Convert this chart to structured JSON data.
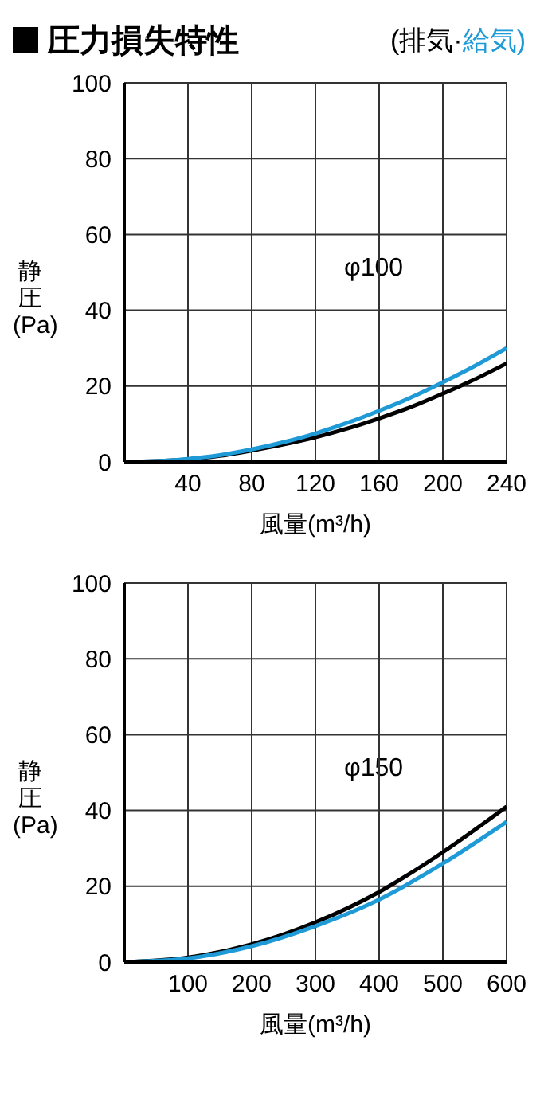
{
  "chart_data": [
    {
      "type": "line",
      "title": "圧力損失特性",
      "xlabel": "風量(m³/h)",
      "ylabel": "静圧(Pa)",
      "annotations": [
        "φ100"
      ],
      "x": [
        0,
        20,
        40,
        60,
        80,
        100,
        120,
        140,
        160,
        180,
        200,
        220,
        240
      ],
      "xlim": [
        0,
        240
      ],
      "xticks": [
        {
          "value": 0,
          "label": null
        },
        40,
        80,
        120,
        160,
        200,
        240
      ],
      "ylim": [
        0,
        100
      ],
      "yticks": [
        0,
        20,
        40,
        60,
        80,
        100
      ],
      "grid": true,
      "legend": "top right",
      "marker": "none",
      "series": [
        {
          "name": "(排気·",
          "color": "#000000",
          "values": [
            0,
            0.2,
            0.7,
            1.6,
            3,
            4.6,
            6.5,
            8.8,
            11.5,
            14.5,
            18,
            21.8,
            26
          ]
        },
        {
          "name": "給気)",
          "color": "#1e9ad6",
          "values": [
            0,
            0.2,
            0.8,
            1.8,
            3.3,
            5.2,
            7.5,
            10.3,
            13.5,
            17,
            21,
            25.3,
            30
          ]
        }
      ]
    },
    {
      "type": "line",
      "xlabel": "風量(m³/h)",
      "ylabel": "静圧(Pa)",
      "annotations": [
        "φ150"
      ],
      "x": [
        0,
        100,
        200,
        300,
        400,
        500,
        600
      ],
      "xlim": [
        0,
        600
      ],
      "xticks": [
        {
          "value": 0,
          "label": null
        },
        100,
        200,
        300,
        400,
        500,
        600
      ],
      "ylim": [
        0,
        100
      ],
      "yticks": [
        0,
        20,
        40,
        60,
        80,
        100
      ],
      "grid": true,
      "marker": "none",
      "series": [
        {
          "color": "#000000",
          "values": [
            0,
            1.2,
            4.7,
            10.5,
            18.5,
            29,
            41
          ]
        },
        {
          "color": "#1e9ad6",
          "values": [
            0,
            1,
            4.2,
            9.5,
            16.5,
            26,
            37
          ]
        }
      ]
    }
  ]
}
